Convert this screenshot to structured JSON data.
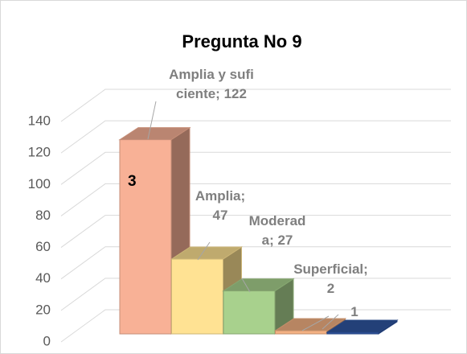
{
  "chart_data": {
    "type": "bar3d",
    "title": "Pregunta No 9",
    "values": [
      122,
      47,
      27,
      2,
      1
    ],
    "value_labels": [
      "Amplia y suficiente; 122",
      "Amplia; 47",
      "Moderada; 27",
      "Superficial; 2",
      "1"
    ],
    "colors": [
      "#f8b196",
      "#ffe293",
      "#a8d18d",
      "#f4b183",
      "#2f55a0"
    ],
    "annotation": "3",
    "ylim": [
      0,
      140
    ],
    "yticks": [
      0,
      20,
      40,
      60,
      80,
      100,
      120,
      140
    ],
    "grid": true
  }
}
